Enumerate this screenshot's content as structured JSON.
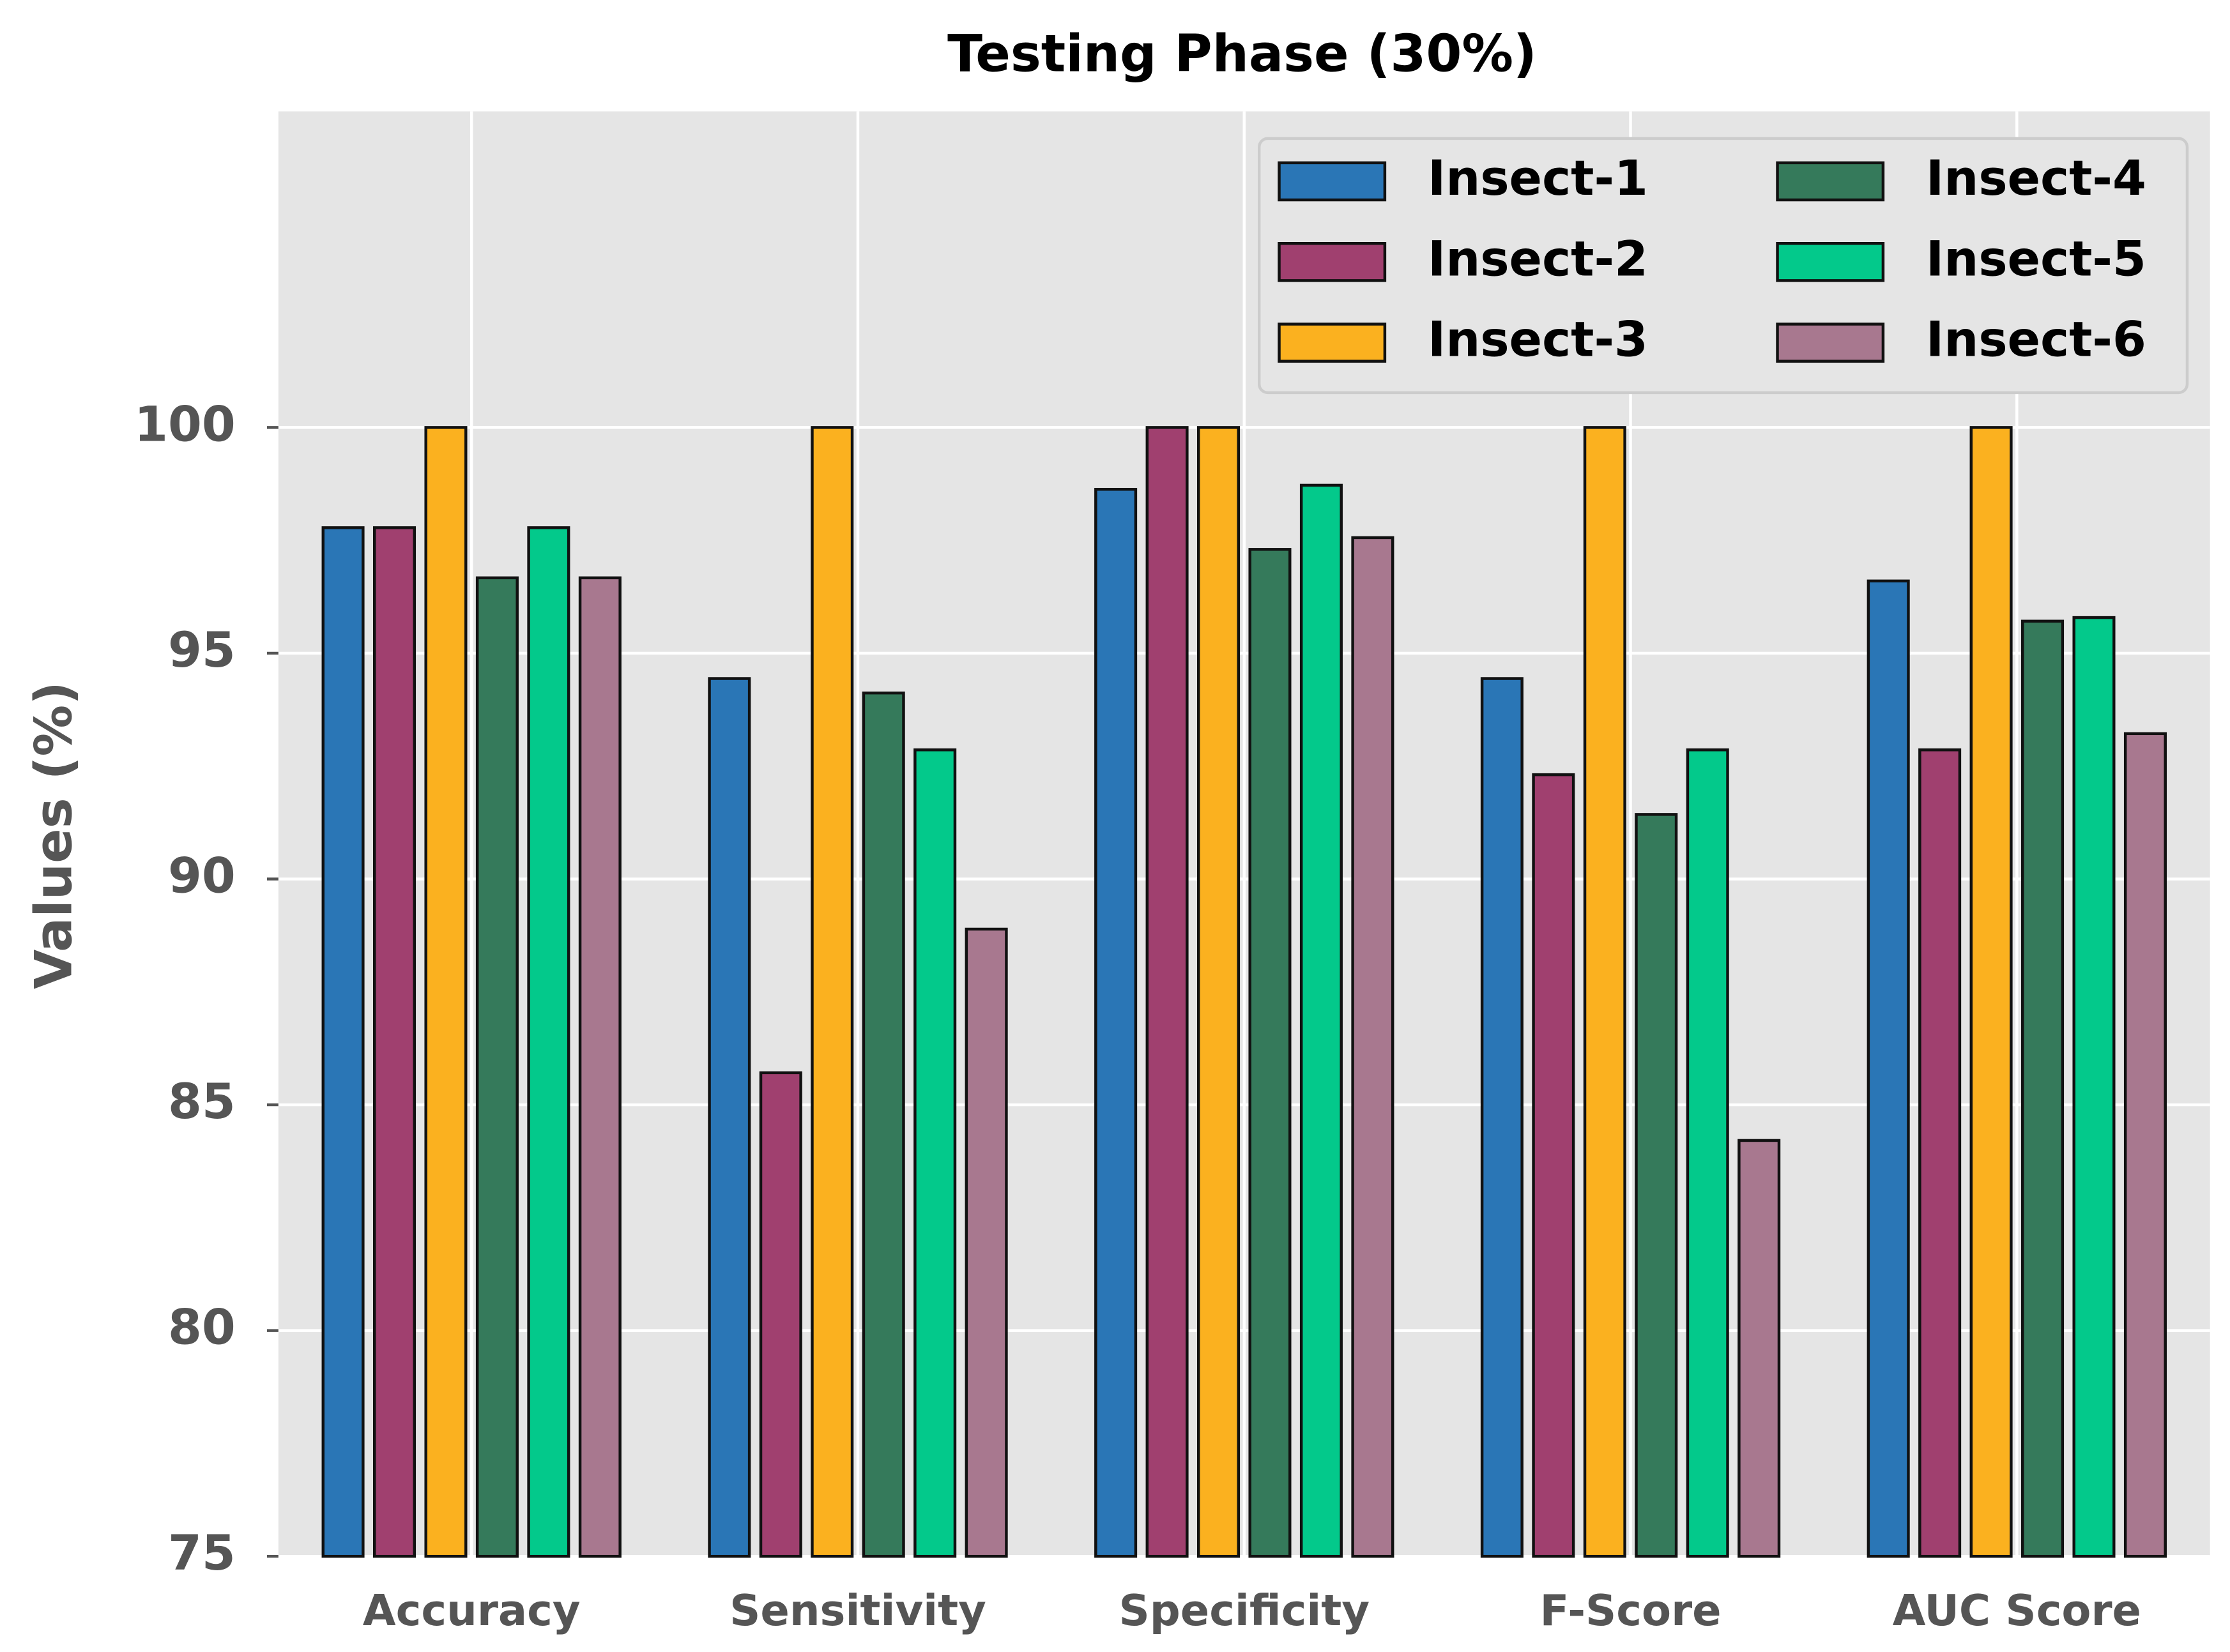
{
  "chart_data": {
    "type": "bar",
    "title": "Testing Phase (30%)",
    "y_label": "Values (%)",
    "categories": [
      "Accuracy",
      "Sensitivity",
      "Specificity",
      "F-Score",
      "AUC Score"
    ],
    "series": [
      {
        "name": "Insect-1",
        "color": "#2a76b6",
        "values": [
          97.78,
          94.44,
          98.63,
          94.44,
          96.6
        ]
      },
      {
        "name": "Insect-2",
        "color": "#a0406f",
        "values": [
          97.78,
          85.71,
          100,
          92.31,
          92.86
        ]
      },
      {
        "name": "Insect-3",
        "color": "#fbb11f",
        "values": [
          100,
          100,
          100,
          100,
          100
        ]
      },
      {
        "name": "Insect-4",
        "color": "#357a5b",
        "values": [
          96.67,
          94.12,
          97.3,
          91.43,
          95.71
        ]
      },
      {
        "name": "Insect-5",
        "color": "#03c98b",
        "values": [
          97.78,
          92.86,
          98.72,
          92.86,
          95.79
        ]
      },
      {
        "name": "Insect-6",
        "color": "#a8788f",
        "values": [
          96.67,
          88.89,
          97.56,
          84.21,
          93.22
        ]
      }
    ],
    "ylim": [
      75,
      107
    ],
    "yticks": [
      75,
      80,
      85,
      90,
      95,
      100
    ],
    "grid": true,
    "legend": "upper right"
  }
}
